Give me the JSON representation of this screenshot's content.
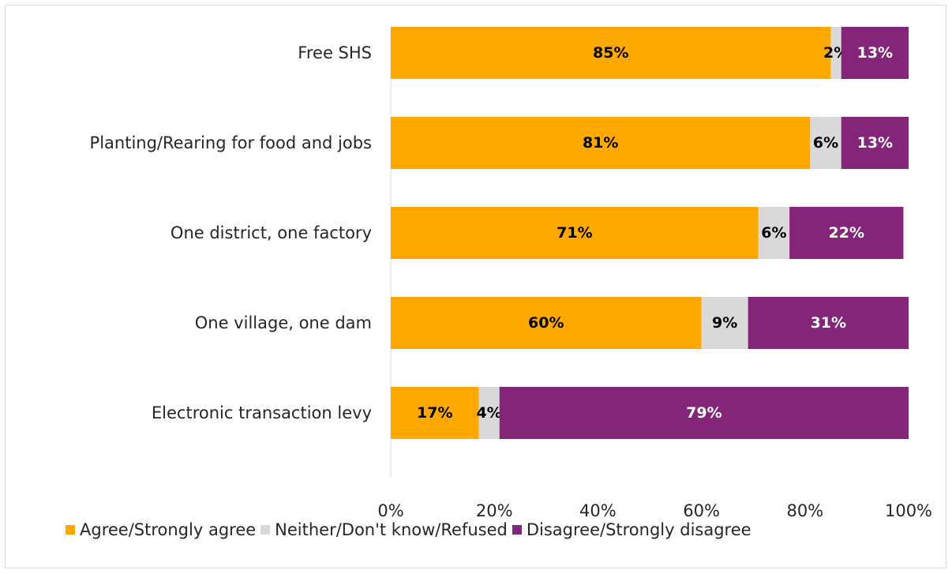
{
  "chart_data": {
    "type": "bar",
    "orientation": "horizontal",
    "stacked": true,
    "categories": [
      "Free SHS",
      "Planting/Rearing for food and jobs",
      "One district, one factory",
      "One village, one dam",
      "Electronic transaction levy"
    ],
    "series": [
      {
        "name": "Agree/Strongly agree",
        "color": "#FFA800",
        "label_color": "#000000",
        "values": [
          85,
          81,
          71,
          60,
          17
        ]
      },
      {
        "name": "Neither/Don't know/Refused",
        "color": "#D9D9D9",
        "label_color": "#000000",
        "values": [
          2,
          6,
          6,
          9,
          4
        ]
      },
      {
        "name": "Disagree/Strongly disagree",
        "color": "#84257A",
        "label_color": "#FFFFFF",
        "values": [
          13,
          13,
          22,
          31,
          79
        ]
      }
    ],
    "data_labels": [
      [
        "85%",
        "81%",
        "71%",
        "60%",
        "17%"
      ],
      [
        "2%",
        "6%",
        "6%",
        "9%",
        "4%"
      ],
      [
        "13%",
        "13%",
        "22%",
        "31%",
        "79%"
      ]
    ],
    "xlim": [
      0,
      100
    ],
    "xticks": [
      0,
      20,
      40,
      60,
      80,
      100
    ],
    "xtick_labels": [
      "0%",
      "20%",
      "40%",
      "60%",
      "80%",
      "100%"
    ],
    "grid": false,
    "legend_position": "bottom"
  }
}
